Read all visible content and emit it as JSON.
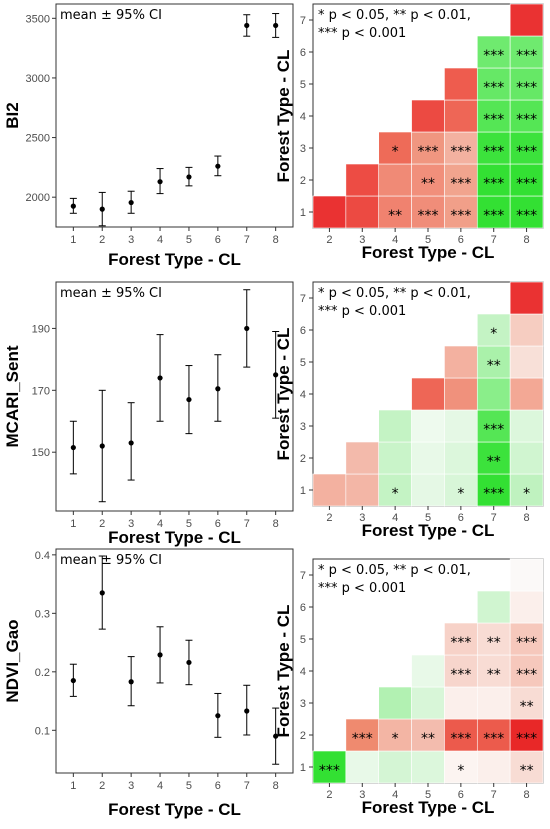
{
  "chart_data": [
    {
      "type": "scatter",
      "subtype": "errorbar",
      "annotation": "mean ± 95% CI",
      "xlabel": "Forest Type - CL",
      "ylabel": "BI2",
      "x": [
        "1",
        "2",
        "3",
        "4",
        "5",
        "6",
        "7",
        "8"
      ],
      "mean": [
        1925,
        1900,
        1955,
        2130,
        2170,
        2260,
        3440,
        3440
      ],
      "lower": [
        1865,
        1760,
        1865,
        2030,
        2095,
        2180,
        3350,
        3340
      ],
      "upper": [
        1990,
        2040,
        2050,
        2240,
        2250,
        2345,
        3530,
        3540
      ],
      "ylim": [
        1750,
        3620
      ],
      "yticks": [
        2000,
        2500,
        3000,
        3500
      ]
    },
    {
      "type": "heatmap",
      "annotation_lines": [
        "* p < 0.05, ** p < 0.01,",
        "*** p < 0.001"
      ],
      "xlabel": "Forest Type - CL",
      "ylabel": "Forest Type - CL",
      "x": [
        "2",
        "3",
        "4",
        "5",
        "6",
        "7",
        "8"
      ],
      "y": [
        "1",
        "2",
        "3",
        "4",
        "5",
        "6",
        "7"
      ],
      "cells": [
        {
          "x": "2",
          "y": "1",
          "color": "#ea3232",
          "label": ""
        },
        {
          "x": "3",
          "y": "1",
          "color": "#ec4a42",
          "label": ""
        },
        {
          "x": "3",
          "y": "2",
          "color": "#ed4c44",
          "label": ""
        },
        {
          "x": "4",
          "y": "1",
          "color": "#f0826f",
          "label": "**"
        },
        {
          "x": "4",
          "y": "2",
          "color": "#f08a76",
          "label": ""
        },
        {
          "x": "4",
          "y": "3",
          "color": "#ee6b58",
          "label": "*"
        },
        {
          "x": "5",
          "y": "1",
          "color": "#f08d79",
          "label": "***"
        },
        {
          "x": "5",
          "y": "2",
          "color": "#f18f7b",
          "label": "**"
        },
        {
          "x": "5",
          "y": "3",
          "color": "#f09680",
          "label": "***"
        },
        {
          "x": "5",
          "y": "4",
          "color": "#ec4a42",
          "label": ""
        },
        {
          "x": "6",
          "y": "1",
          "color": "#f19f89",
          "label": "***"
        },
        {
          "x": "6",
          "y": "2",
          "color": "#f1a48e",
          "label": "***"
        },
        {
          "x": "6",
          "y": "3",
          "color": "#f3b1a0",
          "label": "***"
        },
        {
          "x": "6",
          "y": "4",
          "color": "#ee6656",
          "label": ""
        },
        {
          "x": "6",
          "y": "5",
          "color": "#ee5c4e",
          "label": ""
        },
        {
          "x": "7",
          "y": "1",
          "color": "#33e033",
          "label": "***"
        },
        {
          "x": "7",
          "y": "2",
          "color": "#33e033",
          "label": "***"
        },
        {
          "x": "7",
          "y": "3",
          "color": "#3ce23c",
          "label": "***"
        },
        {
          "x": "7",
          "y": "4",
          "color": "#55e655",
          "label": "***"
        },
        {
          "x": "7",
          "y": "5",
          "color": "#66e866",
          "label": "***"
        },
        {
          "x": "7",
          "y": "6",
          "color": "#6fea6f",
          "label": "***"
        },
        {
          "x": "8",
          "y": "1",
          "color": "#33e033",
          "label": "***"
        },
        {
          "x": "8",
          "y": "2",
          "color": "#33e033",
          "label": "***"
        },
        {
          "x": "8",
          "y": "3",
          "color": "#3ce23c",
          "label": "***"
        },
        {
          "x": "8",
          "y": "4",
          "color": "#55e655",
          "label": "***"
        },
        {
          "x": "8",
          "y": "5",
          "color": "#66e866",
          "label": "***"
        },
        {
          "x": "8",
          "y": "6",
          "color": "#6fea6f",
          "label": "***"
        },
        {
          "x": "8",
          "y": "7",
          "color": "#ea3232",
          "label": ""
        }
      ]
    },
    {
      "type": "scatter",
      "subtype": "errorbar",
      "annotation": "mean ± 95% CI",
      "xlabel": "Forest Type - CL",
      "ylabel": "MCARI_Sent",
      "x": [
        "1",
        "2",
        "3",
        "4",
        "5",
        "6",
        "7",
        "8"
      ],
      "mean": [
        151.5,
        152,
        153,
        174,
        167,
        170.5,
        190,
        175
      ],
      "lower": [
        143,
        134,
        141,
        160,
        156,
        160,
        177.5,
        161
      ],
      "upper": [
        160,
        170,
        166,
        188,
        178,
        181.5,
        202.5,
        189
      ],
      "ylim": [
        131,
        205
      ],
      "yticks": [
        150,
        170,
        190
      ]
    },
    {
      "type": "heatmap",
      "annotation_lines": [
        "* p < 0.05, ** p < 0.01,",
        "*** p < 0.001"
      ],
      "xlabel": "Forest Type - CL",
      "ylabel": "Forest Type - CL",
      "x": [
        "2",
        "3",
        "4",
        "5",
        "6",
        "7",
        "8"
      ],
      "y": [
        "1",
        "2",
        "3",
        "4",
        "5",
        "6",
        "7"
      ],
      "cells": [
        {
          "x": "2",
          "y": "1",
          "color": "#f3b1a0",
          "label": ""
        },
        {
          "x": "3",
          "y": "1",
          "color": "#f3b6a6",
          "label": ""
        },
        {
          "x": "3",
          "y": "2",
          "color": "#f3baab",
          "label": ""
        },
        {
          "x": "4",
          "y": "1",
          "color": "#c4f3c4",
          "label": "*"
        },
        {
          "x": "4",
          "y": "2",
          "color": "#c9f4c9",
          "label": ""
        },
        {
          "x": "4",
          "y": "3",
          "color": "#c4f3c4",
          "label": ""
        },
        {
          "x": "5",
          "y": "1",
          "color": "#e5f8e5",
          "label": ""
        },
        {
          "x": "5",
          "y": "2",
          "color": "#e8f9e8",
          "label": ""
        },
        {
          "x": "5",
          "y": "3",
          "color": "#eefaee",
          "label": ""
        },
        {
          "x": "5",
          "y": "4",
          "color": "#ee6656",
          "label": ""
        },
        {
          "x": "6",
          "y": "1",
          "color": "#d8f6d8",
          "label": "*"
        },
        {
          "x": "6",
          "y": "2",
          "color": "#dcf7dc",
          "label": ""
        },
        {
          "x": "6",
          "y": "3",
          "color": "#e5f8e5",
          "label": ""
        },
        {
          "x": "6",
          "y": "4",
          "color": "#f0917c",
          "label": ""
        },
        {
          "x": "6",
          "y": "5",
          "color": "#f3b1a0",
          "label": ""
        },
        {
          "x": "7",
          "y": "1",
          "color": "#33e033",
          "label": "***"
        },
        {
          "x": "7",
          "y": "2",
          "color": "#3ce23c",
          "label": "**"
        },
        {
          "x": "7",
          "y": "3",
          "color": "#55e655",
          "label": "***"
        },
        {
          "x": "7",
          "y": "4",
          "color": "#8aee8a",
          "label": ""
        },
        {
          "x": "7",
          "y": "5",
          "color": "#aaf1aa",
          "label": "**"
        },
        {
          "x": "7",
          "y": "6",
          "color": "#c4f3c4",
          "label": "*"
        },
        {
          "x": "8",
          "y": "1",
          "color": "#bff2bf",
          "label": "*"
        },
        {
          "x": "8",
          "y": "2",
          "color": "#d0f5d0",
          "label": ""
        },
        {
          "x": "8",
          "y": "3",
          "color": "#dcf7dc",
          "label": ""
        },
        {
          "x": "8",
          "y": "4",
          "color": "#f3a895",
          "label": ""
        },
        {
          "x": "8",
          "y": "5",
          "color": "#f8e0d8",
          "label": ""
        },
        {
          "x": "8",
          "y": "6",
          "color": "#f6cdc1",
          "label": ""
        },
        {
          "x": "8",
          "y": "7",
          "color": "#ea3232",
          "label": ""
        }
      ]
    },
    {
      "type": "scatter",
      "subtype": "errorbar",
      "annotation": "mean ± 95% CI",
      "xlabel": "Forest Type - CL",
      "ylabel": "NDVI_Gao",
      "x": [
        "1",
        "2",
        "3",
        "4",
        "5",
        "6",
        "7",
        "8"
      ],
      "mean": [
        0.185,
        0.335,
        0.183,
        0.229,
        0.216,
        0.125,
        0.133,
        0.09
      ],
      "lower": [
        0.158,
        0.273,
        0.142,
        0.181,
        0.178,
        0.088,
        0.092,
        0.042
      ],
      "upper": [
        0.213,
        0.398,
        0.226,
        0.277,
        0.254,
        0.163,
        0.177,
        0.138
      ],
      "ylim": [
        0.027,
        0.41
      ],
      "yticks": [
        0.1,
        0.2,
        0.3,
        0.4
      ]
    },
    {
      "type": "heatmap",
      "annotation_lines": [
        "* p < 0.05, ** p < 0.01,",
        "*** p < 0.001"
      ],
      "xlabel": "Forest Type - CL",
      "ylabel": "Forest Type - CL",
      "x": [
        "2",
        "3",
        "4",
        "5",
        "6",
        "7",
        "8"
      ],
      "y": [
        "1",
        "2",
        "3",
        "4",
        "5",
        "6",
        "7"
      ],
      "cells": [
        {
          "x": "2",
          "y": "1",
          "color": "#33e033",
          "label": "***"
        },
        {
          "x": "3",
          "y": "1",
          "color": "#e8f9e8",
          "label": ""
        },
        {
          "x": "3",
          "y": "2",
          "color": "#ef8a6f",
          "label": "***"
        },
        {
          "x": "4",
          "y": "1",
          "color": "#d4f5d4",
          "label": ""
        },
        {
          "x": "4",
          "y": "2",
          "color": "#f3b5a4",
          "label": "*"
        },
        {
          "x": "4",
          "y": "3",
          "color": "#b2f1b2",
          "label": ""
        },
        {
          "x": "5",
          "y": "1",
          "color": "#dcf7dc",
          "label": ""
        },
        {
          "x": "5",
          "y": "2",
          "color": "#f3bcae",
          "label": "**"
        },
        {
          "x": "5",
          "y": "3",
          "color": "#d8f6d8",
          "label": ""
        },
        {
          "x": "5",
          "y": "4",
          "color": "#e8f9e8",
          "label": ""
        },
        {
          "x": "6",
          "y": "1",
          "color": "#fcf4f1",
          "label": "*"
        },
        {
          "x": "6",
          "y": "2",
          "color": "#ec5a4c",
          "label": "***"
        },
        {
          "x": "6",
          "y": "3",
          "color": "#fbefeb",
          "label": ""
        },
        {
          "x": "6",
          "y": "4",
          "color": "#f7d5cc",
          "label": "***"
        },
        {
          "x": "6",
          "y": "5",
          "color": "#f7d2c8",
          "label": "***"
        },
        {
          "x": "7",
          "y": "1",
          "color": "#fbefeb",
          "label": ""
        },
        {
          "x": "7",
          "y": "2",
          "color": "#ec5b4c",
          "label": "***"
        },
        {
          "x": "7",
          "y": "3",
          "color": "#fbefeb",
          "label": ""
        },
        {
          "x": "7",
          "y": "4",
          "color": "#f8dcd4",
          "label": "**"
        },
        {
          "x": "7",
          "y": "5",
          "color": "#f8dcd4",
          "label": "**"
        },
        {
          "x": "7",
          "y": "6",
          "color": "#d0f5d0",
          "label": ""
        },
        {
          "x": "8",
          "y": "1",
          "color": "#f8dcd4",
          "label": "**"
        },
        {
          "x": "8",
          "y": "2",
          "color": "#e82828",
          "label": "***"
        },
        {
          "x": "8",
          "y": "3",
          "color": "#f8dcd4",
          "label": "**"
        },
        {
          "x": "8",
          "y": "4",
          "color": "#f6c8bc",
          "label": "***"
        },
        {
          "x": "8",
          "y": "5",
          "color": "#f6c8bc",
          "label": "***"
        },
        {
          "x": "8",
          "y": "6",
          "color": "#fbefeb",
          "label": ""
        },
        {
          "x": "8",
          "y": "7",
          "color": "#fbf9f8",
          "label": ""
        }
      ]
    }
  ]
}
